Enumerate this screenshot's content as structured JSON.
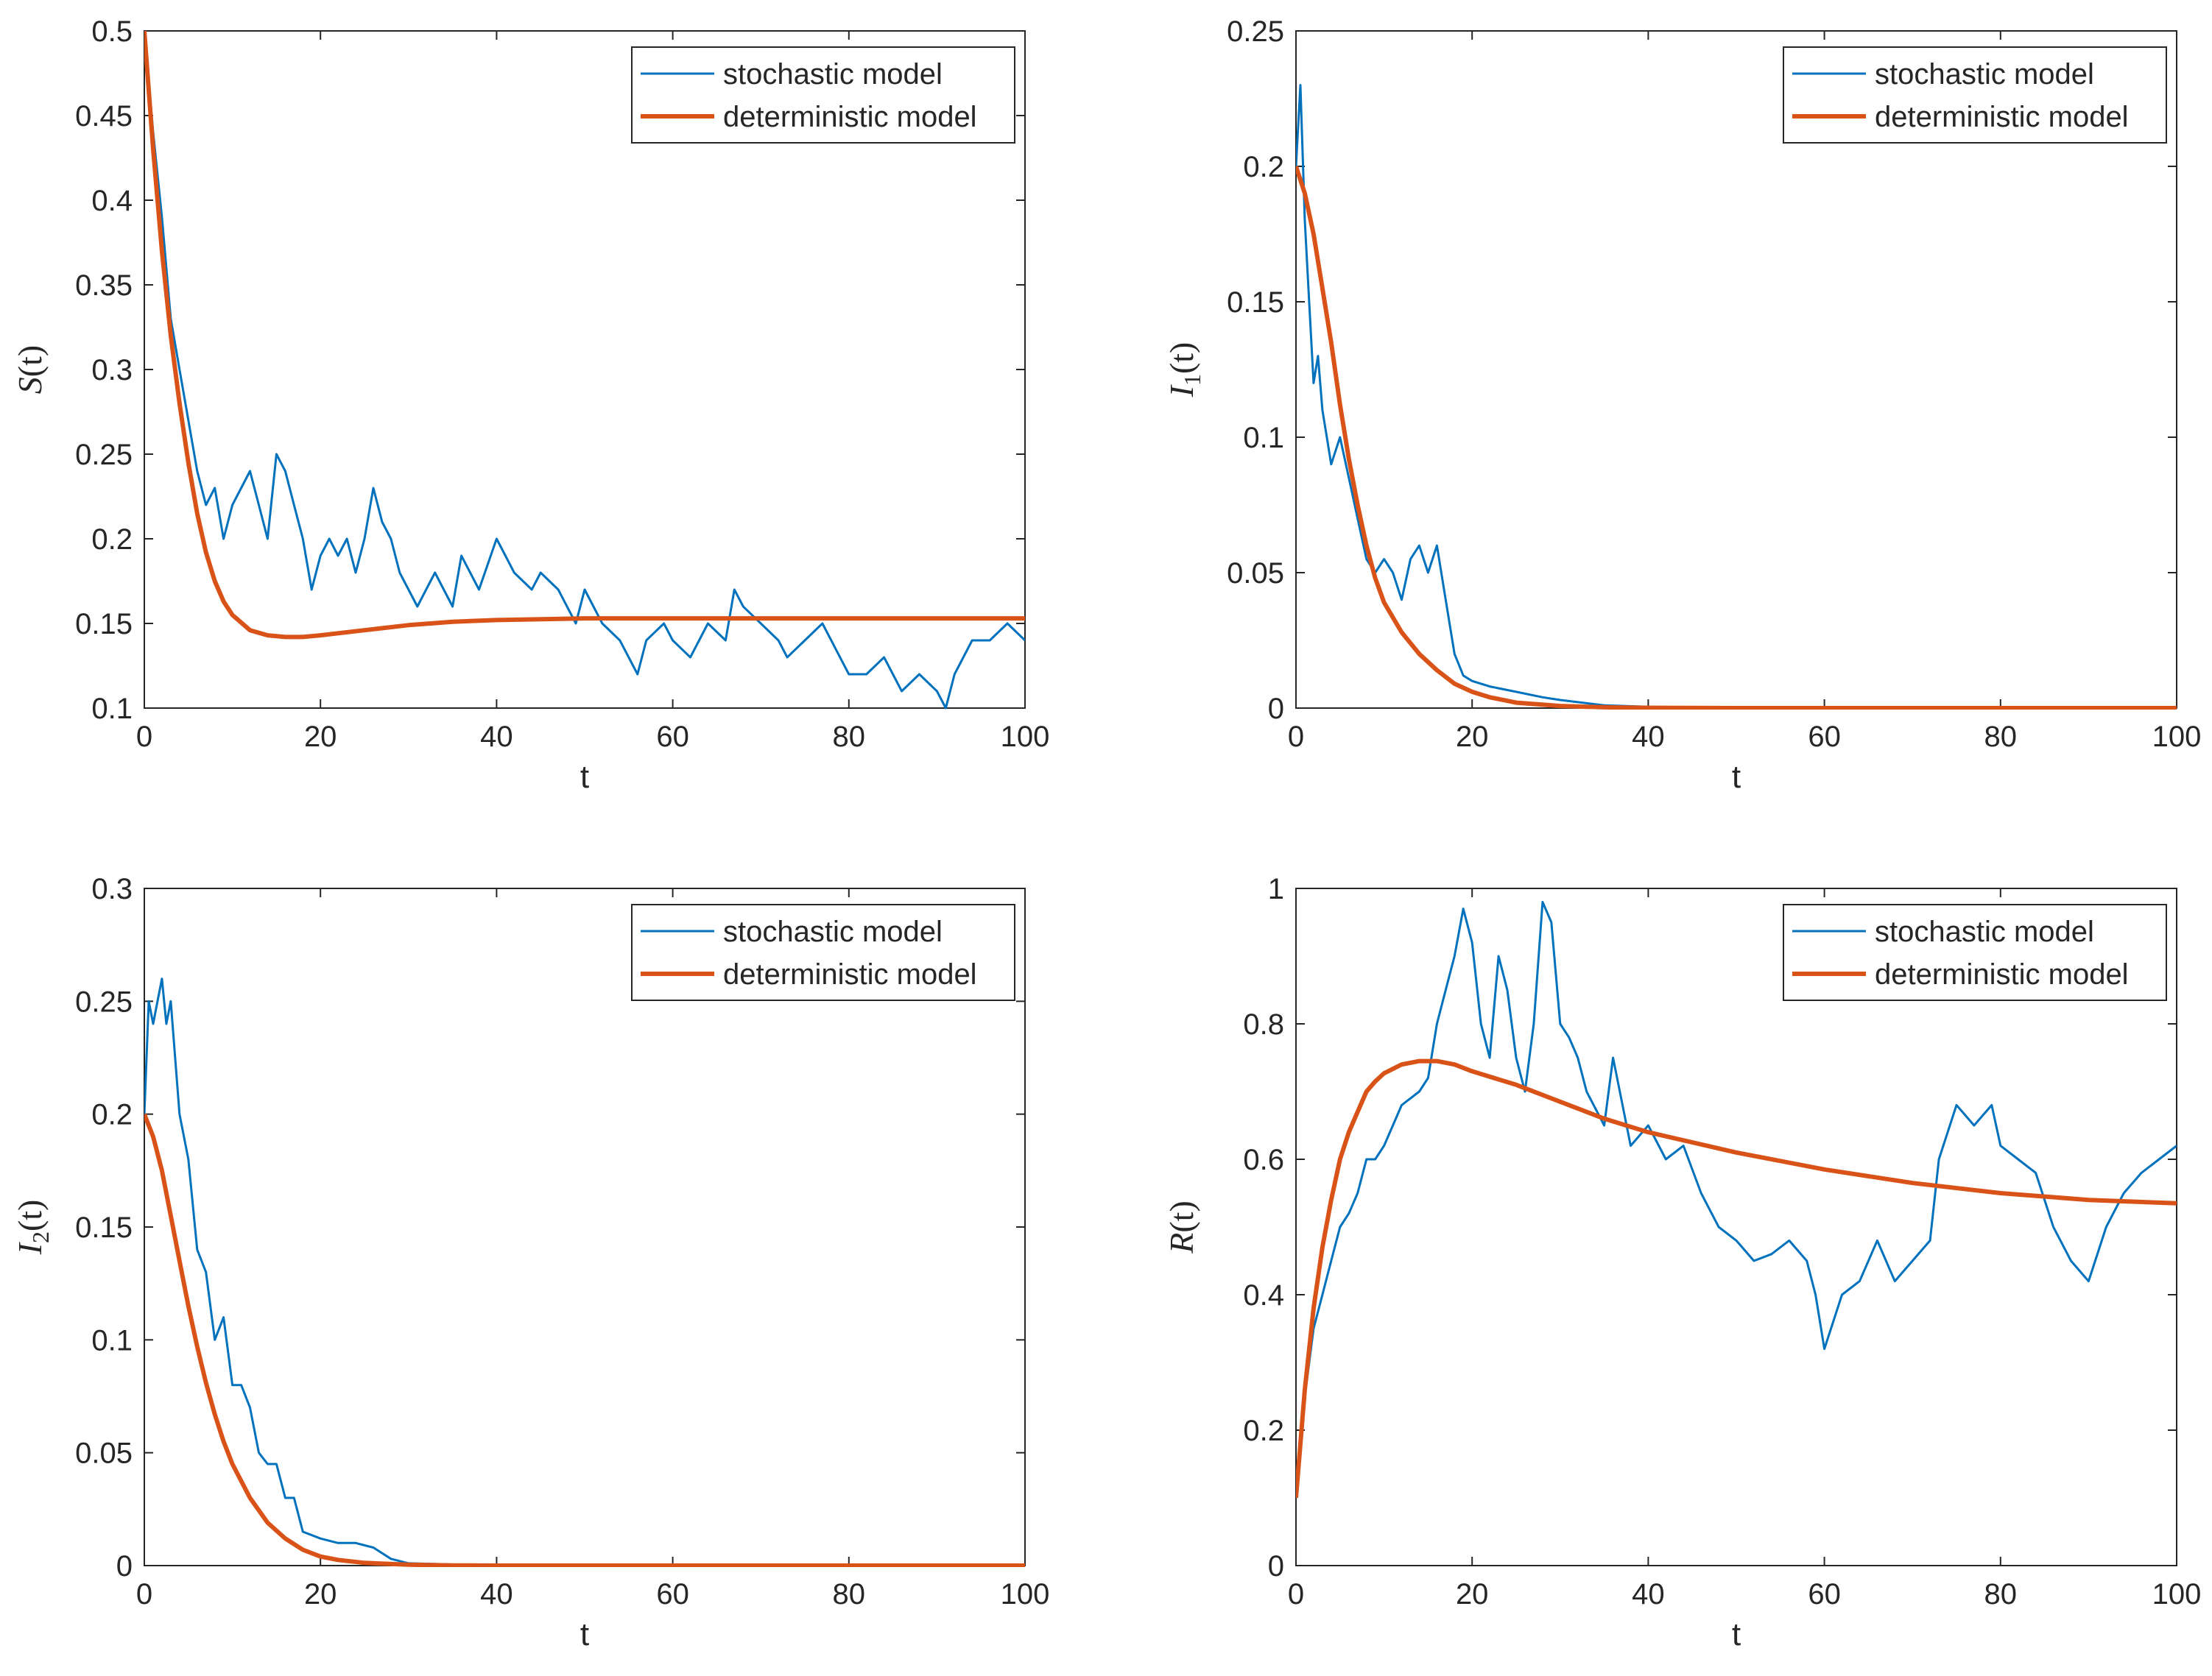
{
  "figure": {
    "panels": 4,
    "layout": "2x2"
  },
  "legend": {
    "stochastic": "stochastic model",
    "deterministic": "deterministic model"
  },
  "colors": {
    "stochastic": "#0072BD",
    "deterministic": "#D95319",
    "axis": "#262626",
    "background": "#ffffff"
  },
  "chart_data": [
    {
      "type": "line",
      "id": "S",
      "ylabel_main": "S",
      "ylabel_sub": "",
      "ylabel_suffix": "(t)",
      "xlabel": "t",
      "xlim": [
        0,
        100
      ],
      "ylim": [
        0.1,
        0.5
      ],
      "xticks": [
        0,
        20,
        40,
        60,
        80,
        100
      ],
      "xtick_labels": [
        "0",
        "20",
        "40",
        "60",
        "80",
        "100"
      ],
      "yticks": [
        0.1,
        0.15,
        0.2,
        0.25,
        0.3,
        0.35,
        0.4,
        0.45,
        0.5
      ],
      "ytick_labels": [
        "0.1",
        "0.15",
        "0.2",
        "0.25",
        "0.3",
        "0.35",
        "0.4",
        "0.45",
        "0.5"
      ],
      "legend_position": "top-right",
      "series": [
        {
          "name": "stochastic model",
          "x": [
            0,
            1,
            2,
            3,
            4,
            5,
            6,
            7,
            8,
            9,
            10,
            12,
            13,
            14,
            15,
            16,
            17,
            18,
            19,
            20,
            21,
            22,
            23,
            24,
            25,
            26,
            27,
            28,
            29,
            30,
            31,
            32,
            33,
            35,
            36,
            38,
            40,
            41,
            42,
            44,
            45,
            47,
            49,
            50,
            52,
            54,
            55,
            56,
            57,
            59,
            60,
            62,
            64,
            66,
            67,
            68,
            70,
            72,
            73,
            75,
            77,
            79,
            80,
            82,
            84,
            86,
            88,
            90,
            91,
            92,
            94,
            96,
            98,
            100
          ],
          "y": [
            0.5,
            0.44,
            0.39,
            0.33,
            0.3,
            0.27,
            0.24,
            0.22,
            0.23,
            0.2,
            0.22,
            0.24,
            0.22,
            0.2,
            0.25,
            0.24,
            0.22,
            0.2,
            0.17,
            0.19,
            0.2,
            0.19,
            0.2,
            0.18,
            0.2,
            0.23,
            0.21,
            0.2,
            0.18,
            0.17,
            0.16,
            0.17,
            0.18,
            0.16,
            0.19,
            0.17,
            0.2,
            0.19,
            0.18,
            0.17,
            0.18,
            0.17,
            0.15,
            0.17,
            0.15,
            0.14,
            0.13,
            0.12,
            0.14,
            0.15,
            0.14,
            0.13,
            0.15,
            0.14,
            0.17,
            0.16,
            0.15,
            0.14,
            0.13,
            0.14,
            0.15,
            0.13,
            0.12,
            0.12,
            0.13,
            0.11,
            0.12,
            0.11,
            0.1,
            0.12,
            0.14,
            0.14,
            0.15,
            0.14
          ]
        },
        {
          "name": "deterministic model",
          "x": [
            0,
            1,
            2,
            3,
            4,
            5,
            6,
            7,
            8,
            9,
            10,
            12,
            14,
            16,
            18,
            20,
            25,
            30,
            35,
            40,
            50,
            60,
            70,
            80,
            90,
            100
          ],
          "y": [
            0.5,
            0.43,
            0.37,
            0.32,
            0.28,
            0.245,
            0.215,
            0.192,
            0.175,
            0.163,
            0.155,
            0.146,
            0.143,
            0.142,
            0.142,
            0.143,
            0.146,
            0.149,
            0.151,
            0.152,
            0.153,
            0.153,
            0.153,
            0.153,
            0.153,
            0.153
          ]
        }
      ]
    },
    {
      "type": "line",
      "id": "I1",
      "ylabel_main": "I",
      "ylabel_sub": "1",
      "ylabel_suffix": "(t)",
      "xlabel": "t",
      "xlim": [
        0,
        100
      ],
      "ylim": [
        0,
        0.25
      ],
      "xticks": [
        0,
        20,
        40,
        60,
        80,
        100
      ],
      "xtick_labels": [
        "0",
        "20",
        "40",
        "60",
        "80",
        "100"
      ],
      "yticks": [
        0,
        0.05,
        0.1,
        0.15,
        0.2,
        0.25
      ],
      "ytick_labels": [
        "0",
        "0.05",
        "0.1",
        "0.15",
        "0.2",
        "0.25"
      ],
      "legend_position": "top-right",
      "series": [
        {
          "name": "stochastic model",
          "x": [
            0,
            0.5,
            1,
            1.5,
            2,
            2.5,
            3,
            3.5,
            4,
            5,
            6,
            7,
            8,
            9,
            10,
            11,
            12,
            13,
            14,
            15,
            16,
            17,
            18,
            19,
            20,
            22,
            25,
            28,
            30,
            35,
            40,
            50,
            60,
            80,
            100
          ],
          "y": [
            0.2,
            0.23,
            0.18,
            0.15,
            0.12,
            0.13,
            0.11,
            0.1,
            0.09,
            0.1,
            0.085,
            0.07,
            0.055,
            0.05,
            0.055,
            0.05,
            0.04,
            0.055,
            0.06,
            0.05,
            0.06,
            0.04,
            0.02,
            0.012,
            0.01,
            0.008,
            0.006,
            0.004,
            0.003,
            0.001,
            0.0005,
            0.0,
            0.0,
            0.0,
            0.0
          ]
        },
        {
          "name": "deterministic model",
          "x": [
            0,
            1,
            2,
            3,
            4,
            5,
            6,
            7,
            8,
            9,
            10,
            12,
            14,
            16,
            18,
            20,
            22,
            25,
            30,
            35,
            40,
            50,
            60,
            80,
            100
          ],
          "y": [
            0.2,
            0.19,
            0.175,
            0.155,
            0.135,
            0.112,
            0.092,
            0.075,
            0.06,
            0.048,
            0.039,
            0.028,
            0.02,
            0.014,
            0.009,
            0.006,
            0.004,
            0.002,
            0.0008,
            0.0003,
            0.0001,
            0.0,
            0.0,
            0.0,
            0.0
          ]
        }
      ]
    },
    {
      "type": "line",
      "id": "I2",
      "ylabel_main": "I",
      "ylabel_sub": "2",
      "ylabel_suffix": "(t)",
      "xlabel": "t",
      "xlim": [
        0,
        100
      ],
      "ylim": [
        0,
        0.3
      ],
      "xticks": [
        0,
        20,
        40,
        60,
        80,
        100
      ],
      "xtick_labels": [
        "0",
        "20",
        "40",
        "60",
        "80",
        "100"
      ],
      "yticks": [
        0,
        0.05,
        0.1,
        0.15,
        0.2,
        0.25,
        0.3
      ],
      "ytick_labels": [
        "0",
        "0.05",
        "0.1",
        "0.15",
        "0.2",
        "0.25",
        "0.3"
      ],
      "legend_position": "top-right",
      "series": [
        {
          "name": "stochastic model",
          "x": [
            0,
            0.5,
            1,
            1.5,
            2,
            2.5,
            3,
            4,
            5,
            6,
            7,
            8,
            9,
            10,
            11,
            12,
            13,
            14,
            15,
            16,
            17,
            18,
            20,
            22,
            24,
            26,
            28,
            30,
            35,
            40,
            60,
            80,
            100
          ],
          "y": [
            0.2,
            0.25,
            0.24,
            0.25,
            0.26,
            0.24,
            0.25,
            0.2,
            0.18,
            0.14,
            0.13,
            0.1,
            0.11,
            0.08,
            0.08,
            0.07,
            0.05,
            0.045,
            0.045,
            0.03,
            0.03,
            0.015,
            0.012,
            0.01,
            0.01,
            0.008,
            0.003,
            0.001,
            0.0005,
            0.0,
            0.0,
            0.0,
            0.0
          ]
        },
        {
          "name": "deterministic model",
          "x": [
            0,
            1,
            2,
            3,
            4,
            5,
            6,
            7,
            8,
            9,
            10,
            12,
            14,
            16,
            18,
            20,
            22,
            25,
            30,
            35,
            40,
            50,
            60,
            80,
            100
          ],
          "y": [
            0.2,
            0.19,
            0.175,
            0.155,
            0.135,
            0.115,
            0.097,
            0.081,
            0.067,
            0.055,
            0.045,
            0.03,
            0.019,
            0.012,
            0.007,
            0.004,
            0.0025,
            0.0012,
            0.0004,
            0.0001,
            0.0,
            0.0,
            0.0,
            0.0,
            0.0
          ]
        }
      ]
    },
    {
      "type": "line",
      "id": "R",
      "ylabel_main": "R",
      "ylabel_sub": "",
      "ylabel_suffix": "(t)",
      "xlabel": "t",
      "xlim": [
        0,
        100
      ],
      "ylim": [
        0,
        1
      ],
      "xticks": [
        0,
        20,
        40,
        60,
        80,
        100
      ],
      "xtick_labels": [
        "0",
        "20",
        "40",
        "60",
        "80",
        "100"
      ],
      "yticks": [
        0,
        0.2,
        0.4,
        0.6,
        0.8,
        1
      ],
      "ytick_labels": [
        "0",
        "0.2",
        "0.4",
        "0.6",
        "0.8",
        "1"
      ],
      "legend_position": "top-right",
      "series": [
        {
          "name": "stochastic model",
          "x": [
            0,
            1,
            2,
            3,
            4,
            5,
            6,
            7,
            8,
            9,
            10,
            11,
            12,
            14,
            15,
            16,
            17,
            18,
            19,
            20,
            21,
            22,
            23,
            24,
            25,
            26,
            27,
            28,
            29,
            30,
            31,
            32,
            33,
            35,
            36,
            38,
            40,
            42,
            44,
            46,
            48,
            50,
            52,
            54,
            56,
            58,
            59,
            60,
            62,
            64,
            66,
            68,
            70,
            72,
            73,
            75,
            77,
            79,
            80,
            82,
            84,
            86,
            88,
            90,
            92,
            94,
            96,
            98,
            100
          ],
          "y": [
            0.1,
            0.25,
            0.35,
            0.4,
            0.45,
            0.5,
            0.52,
            0.55,
            0.6,
            0.6,
            0.62,
            0.65,
            0.68,
            0.7,
            0.72,
            0.8,
            0.85,
            0.9,
            0.97,
            0.92,
            0.8,
            0.75,
            0.9,
            0.85,
            0.75,
            0.7,
            0.8,
            0.98,
            0.95,
            0.8,
            0.78,
            0.75,
            0.7,
            0.65,
            0.75,
            0.62,
            0.65,
            0.6,
            0.62,
            0.55,
            0.5,
            0.48,
            0.45,
            0.46,
            0.48,
            0.45,
            0.4,
            0.32,
            0.4,
            0.42,
            0.48,
            0.42,
            0.45,
            0.48,
            0.6,
            0.68,
            0.65,
            0.68,
            0.62,
            0.6,
            0.58,
            0.5,
            0.45,
            0.42,
            0.5,
            0.55,
            0.58,
            0.6,
            0.62
          ]
        },
        {
          "name": "deterministic model",
          "x": [
            0,
            1,
            2,
            3,
            4,
            5,
            6,
            7,
            8,
            9,
            10,
            12,
            14,
            16,
            18,
            20,
            25,
            30,
            35,
            40,
            50,
            60,
            70,
            80,
            90,
            100
          ],
          "y": [
            0.1,
            0.26,
            0.38,
            0.47,
            0.54,
            0.6,
            0.64,
            0.67,
            0.7,
            0.715,
            0.727,
            0.74,
            0.745,
            0.745,
            0.74,
            0.73,
            0.71,
            0.685,
            0.66,
            0.64,
            0.61,
            0.585,
            0.565,
            0.55,
            0.54,
            0.535
          ]
        }
      ]
    }
  ]
}
